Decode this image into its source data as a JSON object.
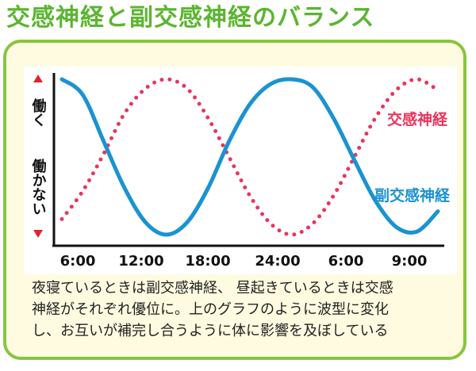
{
  "title": "交感神経と副交感神経のバランス",
  "colors": {
    "title": "#5cb531",
    "panel_border": "#88c540",
    "panel_bg": "#fffbe0",
    "sympathetic": "#e8355e",
    "parasympathetic": "#1a93d1",
    "arrow": "#e2242b"
  },
  "chart_data": {
    "type": "line",
    "ylabel_top": "働く",
    "ylabel_bottom": "働かない",
    "y_scale_note": "",
    "x_ticks": [
      "6:00",
      "12:00",
      "18:00",
      "24:00",
      "6:00",
      "9:00"
    ],
    "ylim": [
      0,
      1
    ],
    "series": [
      {
        "name": "交感神経",
        "style": "dotted",
        "points": [
          [
            0,
            0.1
          ],
          [
            0.5,
            0.28
          ],
          [
            1,
            0.52
          ],
          [
            1.5,
            0.78
          ],
          [
            2,
            0.94
          ],
          [
            2.5,
            1.0
          ],
          [
            3,
            0.94
          ],
          [
            3.5,
            0.75
          ],
          [
            4,
            0.5
          ],
          [
            4.5,
            0.25
          ],
          [
            5,
            0.07
          ],
          [
            5.5,
            0.0
          ],
          [
            6,
            0.07
          ],
          [
            6.5,
            0.25
          ],
          [
            7,
            0.5
          ],
          [
            7.5,
            0.75
          ],
          [
            8,
            0.93
          ],
          [
            8.5,
            1.0
          ],
          [
            9,
            0.93
          ]
        ]
      },
      {
        "name": "副交感神経",
        "style": "solid",
        "points": [
          [
            0,
            1.0
          ],
          [
            0.5,
            0.9
          ],
          [
            1,
            0.6
          ],
          [
            1.5,
            0.3
          ],
          [
            2,
            0.08
          ],
          [
            2.5,
            0.0
          ],
          [
            3,
            0.08
          ],
          [
            3.5,
            0.3
          ],
          [
            4,
            0.6
          ],
          [
            4.5,
            0.84
          ],
          [
            5,
            0.97
          ],
          [
            5.5,
            1.0
          ],
          [
            6,
            0.95
          ],
          [
            6.5,
            0.75
          ],
          [
            7,
            0.48
          ],
          [
            7.5,
            0.22
          ],
          [
            8,
            0.05
          ],
          [
            8.5,
            0.02
          ],
          [
            9,
            0.15
          ]
        ]
      }
    ]
  },
  "caption": {
    "line1": "夜寝ているときは副交感神経、 昼起きているときは交感",
    "line2": "神経がそれぞれ優位に。上のグラフのように波型に変化",
    "line3": "し、お互いが補完し合うように体に影響を及ぼしている"
  }
}
